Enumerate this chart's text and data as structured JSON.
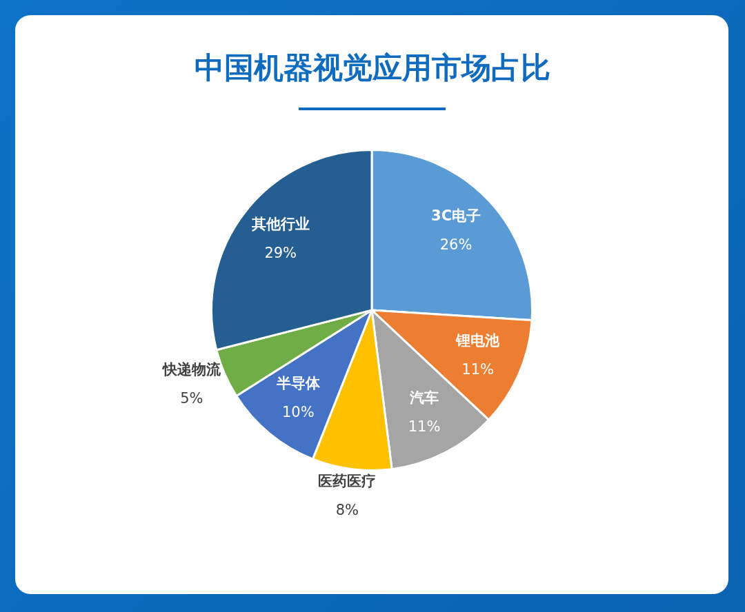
{
  "chart_data": {
    "type": "pie",
    "title": "中国机器视觉应用市场占比",
    "categories": [
      "3C电子",
      "锂电池",
      "汽车",
      "医药医疗",
      "半导体",
      "快递物流",
      "其他行业"
    ],
    "values": [
      26,
      11,
      11,
      8,
      10,
      5,
      29
    ],
    "colors": [
      "#5b9bd5",
      "#ed7d31",
      "#a5a5a5",
      "#ffc000",
      "#4472c4",
      "#70ad47",
      "#255e91"
    ],
    "value_labels": [
      "26%",
      "11%",
      "11%",
      "8%",
      "10%",
      "5%",
      "29%"
    ]
  }
}
